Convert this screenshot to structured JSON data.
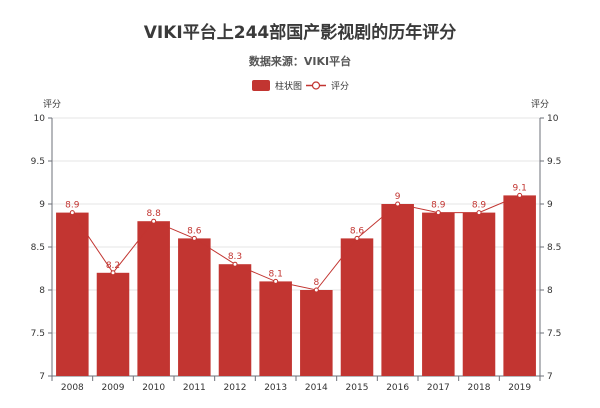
{
  "chart_data": {
    "type": "bar",
    "title": "VIKI平台上244部国产影视剧的历年评分",
    "subtitle": "数据来源：VIKI平台",
    "legend": {
      "bar_label": "柱状图",
      "line_label": "评分",
      "position": "top-center"
    },
    "y_axis_left_label": "评分",
    "y_axis_right_label": "评分",
    "ylim": [
      7,
      10
    ],
    "yticks": [
      "7",
      "7.5",
      "8",
      "8.5",
      "9",
      "9.5",
      "10"
    ],
    "categories": [
      "2008",
      "2009",
      "2010",
      "2011",
      "2012",
      "2013",
      "2014",
      "2015",
      "2016",
      "2017",
      "2018",
      "2019"
    ],
    "series": [
      {
        "name": "柱状图",
        "kind": "bar",
        "values": [
          8.9,
          8.2,
          8.8,
          8.6,
          8.3,
          8.1,
          8.0,
          8.6,
          9.0,
          8.9,
          8.9,
          9.1
        ]
      },
      {
        "name": "评分",
        "kind": "line",
        "values": [
          8.9,
          8.2,
          8.8,
          8.6,
          8.3,
          8.1,
          8.0,
          8.6,
          9.0,
          8.9,
          8.9,
          9.1
        ]
      }
    ],
    "data_labels": [
      "8.9",
      "8.2",
      "8.8",
      "8.6",
      "8.3",
      "8.1",
      "8",
      "8.6",
      "9",
      "8.9",
      "8.9",
      "9.1"
    ],
    "grid": true,
    "colors": {
      "bar": "#c23531",
      "line": "#c23531",
      "axis": "#6e7079",
      "grid": "#e6e6e6"
    }
  }
}
